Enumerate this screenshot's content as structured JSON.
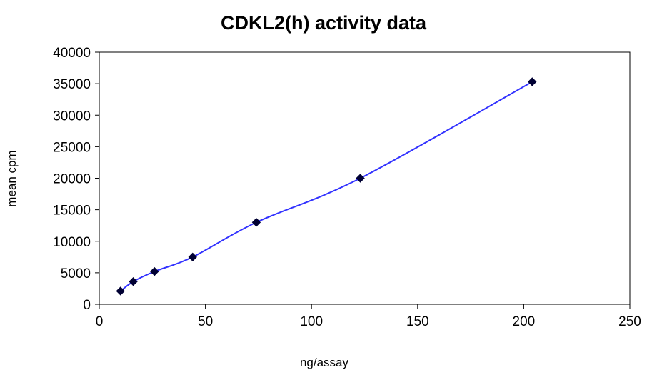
{
  "chart_data": {
    "type": "scatter",
    "title": "CDKL2(h) activity data",
    "xlabel": "ng/assay",
    "ylabel": "mean cpm",
    "xlim": [
      0,
      250
    ],
    "ylim": [
      0,
      40000
    ],
    "x_ticks": [
      0,
      50,
      100,
      150,
      200,
      250
    ],
    "y_ticks": [
      0,
      5000,
      10000,
      15000,
      20000,
      25000,
      30000,
      35000,
      40000
    ],
    "grid": false,
    "legend": "none",
    "smooth_line": true,
    "series": [
      {
        "color": "#3333ff",
        "marker_color": "#000033",
        "x": [
          10,
          16,
          26,
          44,
          74,
          123,
          204
        ],
        "y": [
          2100,
          3600,
          5200,
          7500,
          13000,
          20000,
          35300
        ]
      }
    ]
  }
}
